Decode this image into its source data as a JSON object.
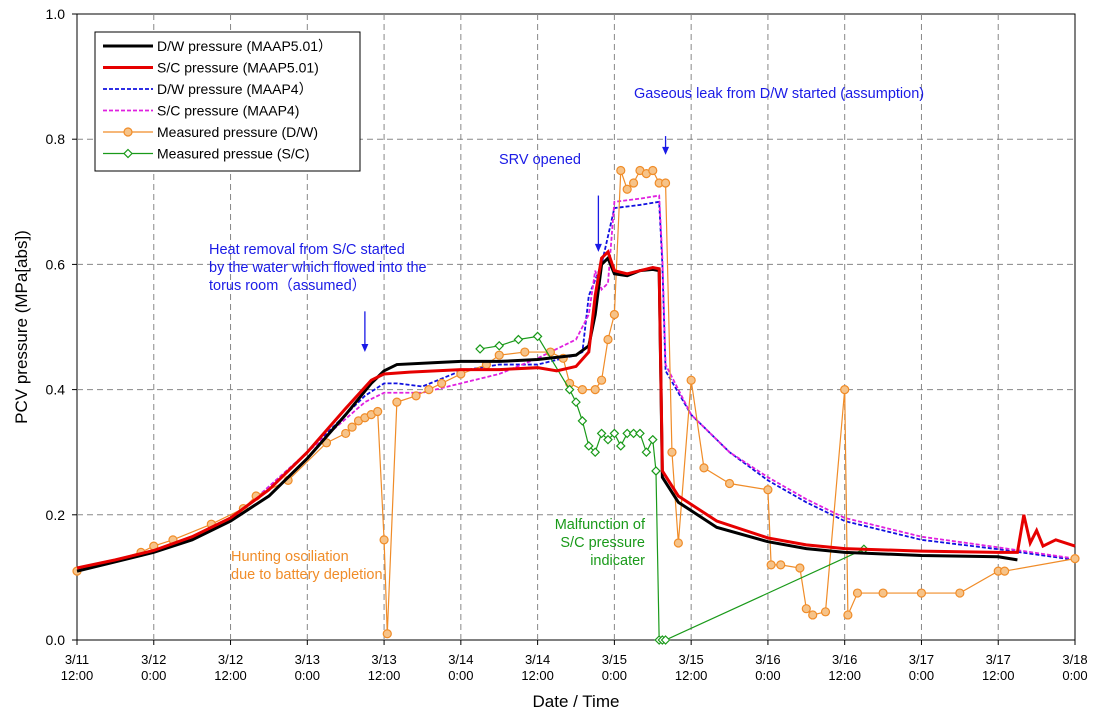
{
  "chart_data": {
    "type": "line",
    "xlabel": "Date / Time",
    "ylabel": "PCV pressure (MPa[abs])",
    "xlim": [
      "3/11 12:00",
      "3/18 0:00"
    ],
    "ylim": [
      0,
      1.0
    ],
    "grid": true,
    "legend_position": "top-left",
    "x_ticks": [
      {
        "date": "3/11",
        "time": "12:00"
      },
      {
        "date": "3/12",
        "time": "0:00"
      },
      {
        "date": "3/12",
        "time": "12:00"
      },
      {
        "date": "3/13",
        "time": "0:00"
      },
      {
        "date": "3/13",
        "time": "12:00"
      },
      {
        "date": "3/14",
        "time": "0:00"
      },
      {
        "date": "3/14",
        "time": "12:00"
      },
      {
        "date": "3/15",
        "time": "0:00"
      },
      {
        "date": "3/15",
        "time": "12:00"
      },
      {
        "date": "3/16",
        "time": "0:00"
      },
      {
        "date": "3/16",
        "time": "12:00"
      },
      {
        "date": "3/17",
        "time": "0:00"
      },
      {
        "date": "3/17",
        "time": "12:00"
      },
      {
        "date": "3/18",
        "time": "0:00"
      }
    ],
    "y_ticks": [
      "0.0",
      "0.2",
      "0.4",
      "0.6",
      "0.8",
      "1.0"
    ],
    "series": [
      {
        "name": "D/W pressure (MAAP5.01）",
        "color": "#000000",
        "style": "solid",
        "points": [
          [
            "3/11 12:00",
            0.11
          ],
          [
            "3/11 18:00",
            0.125
          ],
          [
            "3/12 0:00",
            0.14
          ],
          [
            "3/12 6:00",
            0.16
          ],
          [
            "3/12 12:00",
            0.19
          ],
          [
            "3/12 18:00",
            0.23
          ],
          [
            "3/13 0:00",
            0.29
          ],
          [
            "3/13 6:00",
            0.36
          ],
          [
            "3/13 10:00",
            0.41
          ],
          [
            "3/13 12:00",
            0.43
          ],
          [
            "3/13 14:00",
            0.44
          ],
          [
            "3/13 20:00",
            0.443
          ],
          [
            "3/14 0:00",
            0.445
          ],
          [
            "3/14 6:00",
            0.445
          ],
          [
            "3/14 12:00",
            0.448
          ],
          [
            "3/14 18:00",
            0.455
          ],
          [
            "3/14 20:00",
            0.47
          ],
          [
            "3/14 21:00",
            0.52
          ],
          [
            "3/14 22:00",
            0.6
          ],
          [
            "3/14 23:00",
            0.61
          ],
          [
            "3/15 0:00",
            0.585
          ],
          [
            "3/15 2:00",
            0.582
          ],
          [
            "3/15 4:00",
            0.59
          ],
          [
            "3/15 6:00",
            0.592
          ],
          [
            "3/15 7:00",
            0.59
          ],
          [
            "3/15 7:30",
            0.26
          ],
          [
            "3/15 10:00",
            0.22
          ],
          [
            "3/15 16:00",
            0.18
          ],
          [
            "3/16 0:00",
            0.157
          ],
          [
            "3/16 6:00",
            0.146
          ],
          [
            "3/16 12:00",
            0.14
          ],
          [
            "3/17 0:00",
            0.135
          ],
          [
            "3/17 12:00",
            0.133
          ],
          [
            "3/17 15:00",
            0.128
          ]
        ]
      },
      {
        "name": "S/C pressure (MAAP5.01)",
        "color": "#e60000",
        "style": "solid",
        "points": [
          [
            "3/11 12:00",
            0.115
          ],
          [
            "3/11 18:00",
            0.128
          ],
          [
            "3/12 0:00",
            0.143
          ],
          [
            "3/12 6:00",
            0.165
          ],
          [
            "3/12 12:00",
            0.195
          ],
          [
            "3/12 18:00",
            0.24
          ],
          [
            "3/13 0:00",
            0.3
          ],
          [
            "3/13 6:00",
            0.37
          ],
          [
            "3/13 10:00",
            0.415
          ],
          [
            "3/13 12:00",
            0.425
          ],
          [
            "3/13 16:00",
            0.428
          ],
          [
            "3/14 0:00",
            0.432
          ],
          [
            "3/14 6:00",
            0.432
          ],
          [
            "3/14 12:00",
            0.435
          ],
          [
            "3/14 15:00",
            0.43
          ],
          [
            "3/14 18:00",
            0.437
          ],
          [
            "3/14 20:00",
            0.46
          ],
          [
            "3/14 21:00",
            0.55
          ],
          [
            "3/14 22:00",
            0.61
          ],
          [
            "3/14 23:00",
            0.62
          ],
          [
            "3/15 0:00",
            0.59
          ],
          [
            "3/15 2:00",
            0.585
          ],
          [
            "3/15 4:00",
            0.59
          ],
          [
            "3/15 6:00",
            0.595
          ],
          [
            "3/15 7:00",
            0.593
          ],
          [
            "3/15 7:30",
            0.27
          ],
          [
            "3/15 10:00",
            0.23
          ],
          [
            "3/15 16:00",
            0.19
          ],
          [
            "3/16 0:00",
            0.163
          ],
          [
            "3/16 6:00",
            0.152
          ],
          [
            "3/16 12:00",
            0.146
          ],
          [
            "3/17 0:00",
            0.142
          ],
          [
            "3/17 12:00",
            0.14
          ],
          [
            "3/17 15:00",
            0.14
          ],
          [
            "3/17 16:00",
            0.2
          ],
          [
            "3/17 17:00",
            0.155
          ],
          [
            "3/17 18:00",
            0.175
          ],
          [
            "3/17 19:00",
            0.15
          ],
          [
            "3/17 21:00",
            0.16
          ],
          [
            "3/18 0:00",
            0.15
          ]
        ]
      },
      {
        "name": "D/W pressure (MAAP4）",
        "color": "#1010e0",
        "style": "dashed",
        "points": [
          [
            "3/11 12:00",
            0.11
          ],
          [
            "3/12 0:00",
            0.14
          ],
          [
            "3/12 12:00",
            0.19
          ],
          [
            "3/13 0:00",
            0.3
          ],
          [
            "3/13 9:00",
            0.39
          ],
          [
            "3/13 12:00",
            0.41
          ],
          [
            "3/13 14:00",
            0.41
          ],
          [
            "3/13 18:00",
            0.405
          ],
          [
            "3/14 0:00",
            0.43
          ],
          [
            "3/14 6:00",
            0.44
          ],
          [
            "3/14 12:00",
            0.44
          ],
          [
            "3/14 18:00",
            0.455
          ],
          [
            "3/14 19:00",
            0.46
          ],
          [
            "3/14 20:00",
            0.55
          ],
          [
            "3/14 22:00",
            0.6
          ],
          [
            "3/15 0:00",
            0.69
          ],
          [
            "3/15 4:00",
            0.695
          ],
          [
            "3/15 7:00",
            0.7
          ],
          [
            "3/15 7:30",
            0.6
          ],
          [
            "3/15 8:00",
            0.43
          ],
          [
            "3/15 12:00",
            0.36
          ],
          [
            "3/15 18:00",
            0.3
          ],
          [
            "3/16 0:00",
            0.255
          ],
          [
            "3/16 6:00",
            0.22
          ],
          [
            "3/16 12:00",
            0.19
          ],
          [
            "3/17 0:00",
            0.16
          ],
          [
            "3/17 12:00",
            0.145
          ],
          [
            "3/18 0:00",
            0.128
          ]
        ]
      },
      {
        "name": "S/C pressure (MAAP4)",
        "color": "#e020e0",
        "style": "dashed",
        "points": [
          [
            "3/11 12:00",
            0.11
          ],
          [
            "3/12 0:00",
            0.14
          ],
          [
            "3/12 12:00",
            0.19
          ],
          [
            "3/13 0:00",
            0.3
          ],
          [
            "3/13 9:00",
            0.38
          ],
          [
            "3/13 12:00",
            0.395
          ],
          [
            "3/13 18:00",
            0.395
          ],
          [
            "3/14 0:00",
            0.41
          ],
          [
            "3/14 6:00",
            0.425
          ],
          [
            "3/14 12:00",
            0.45
          ],
          [
            "3/14 18:00",
            0.48
          ],
          [
            "3/14 20:00",
            0.52
          ],
          [
            "3/14 21:00",
            0.59
          ],
          [
            "3/14 22:00",
            0.56
          ],
          [
            "3/14 23:00",
            0.57
          ],
          [
            "3/15 0:00",
            0.7
          ],
          [
            "3/15 4:00",
            0.705
          ],
          [
            "3/15 7:00",
            0.71
          ],
          [
            "3/15 7:30",
            0.61
          ],
          [
            "3/15 8:00",
            0.44
          ],
          [
            "3/15 12:00",
            0.36
          ],
          [
            "3/15 18:00",
            0.3
          ],
          [
            "3/16 0:00",
            0.26
          ],
          [
            "3/16 6:00",
            0.225
          ],
          [
            "3/16 12:00",
            0.195
          ],
          [
            "3/17 0:00",
            0.165
          ],
          [
            "3/17 12:00",
            0.148
          ],
          [
            "3/18 0:00",
            0.13
          ]
        ]
      },
      {
        "name": "Measured pressure (D/W)",
        "color": "#f08c28",
        "style": "marker-circle",
        "points": [
          [
            "3/11 12:00",
            0.11
          ],
          [
            "3/11 22:00",
            0.14
          ],
          [
            "3/12 0:00",
            0.15
          ],
          [
            "3/12 3:00",
            0.16
          ],
          [
            "3/12 9:00",
            0.185
          ],
          [
            "3/12 14:00",
            0.21
          ],
          [
            "3/12 16:00",
            0.23
          ],
          [
            "3/12 21:00",
            0.255
          ],
          [
            "3/13 3:00",
            0.315
          ],
          [
            "3/13 6:00",
            0.33
          ],
          [
            "3/13 7:00",
            0.34
          ],
          [
            "3/13 8:00",
            0.35
          ],
          [
            "3/13 9:00",
            0.355
          ],
          [
            "3/13 10:00",
            0.36
          ],
          [
            "3/13 11:00",
            0.365
          ],
          [
            "3/13 12:00",
            0.16
          ],
          [
            "3/13 12:30",
            0.01
          ],
          [
            "3/13 14:00",
            0.38
          ],
          [
            "3/13 17:00",
            0.39
          ],
          [
            "3/13 19:00",
            0.4
          ],
          [
            "3/13 21:00",
            0.41
          ],
          [
            "3/14 0:00",
            0.425
          ],
          [
            "3/14 4:00",
            0.44
          ],
          [
            "3/14 6:00",
            0.455
          ],
          [
            "3/14 10:00",
            0.46
          ],
          [
            "3/14 14:00",
            0.46
          ],
          [
            "3/14 16:00",
            0.45
          ],
          [
            "3/14 17:00",
            0.41
          ],
          [
            "3/14 19:00",
            0.4
          ],
          [
            "3/14 21:00",
            0.4
          ],
          [
            "3/14 22:00",
            0.415
          ],
          [
            "3/14 23:00",
            0.48
          ],
          [
            "3/15 0:00",
            0.52
          ],
          [
            "3/15 1:00",
            0.75
          ],
          [
            "3/15 2:00",
            0.72
          ],
          [
            "3/15 3:00",
            0.73
          ],
          [
            "3/15 4:00",
            0.75
          ],
          [
            "3/15 5:00",
            0.745
          ],
          [
            "3/15 6:00",
            0.75
          ],
          [
            "3/15 7:00",
            0.73
          ],
          [
            "3/15 8:00",
            0.73
          ],
          [
            "3/15 9:00",
            0.3
          ],
          [
            "3/15 10:00",
            0.155
          ],
          [
            "3/15 12:00",
            0.415
          ],
          [
            "3/15 14:00",
            0.275
          ],
          [
            "3/15 18:00",
            0.25
          ],
          [
            "3/16 0:00",
            0.24
          ],
          [
            "3/16 0:30",
            0.12
          ],
          [
            "3/16 2:00",
            0.12
          ],
          [
            "3/16 5:00",
            0.115
          ],
          [
            "3/16 6:00",
            0.05
          ],
          [
            "3/16 7:00",
            0.04
          ],
          [
            "3/16 9:00",
            0.045
          ],
          [
            "3/16 12:00",
            0.4
          ],
          [
            "3/16 12:30",
            0.04
          ],
          [
            "3/16 14:00",
            0.075
          ],
          [
            "3/16 18:00",
            0.075
          ],
          [
            "3/17 0:00",
            0.075
          ],
          [
            "3/17 6:00",
            0.075
          ],
          [
            "3/17 12:00",
            0.11
          ],
          [
            "3/17 13:00",
            0.11
          ],
          [
            "3/18 0:00",
            0.13
          ]
        ]
      },
      {
        "name": "Measured pressue (S/C)",
        "color": "#1a9a1a",
        "style": "marker-diamond",
        "points": [
          [
            "3/14 3:00",
            0.465
          ],
          [
            "3/14 6:00",
            0.47
          ],
          [
            "3/14 9:00",
            0.48
          ],
          [
            "3/14 12:00",
            0.485
          ],
          [
            "3/14 17:00",
            0.4
          ],
          [
            "3/14 18:00",
            0.38
          ],
          [
            "3/14 19:00",
            0.35
          ],
          [
            "3/14 20:00",
            0.31
          ],
          [
            "3/14 21:00",
            0.3
          ],
          [
            "3/14 22:00",
            0.33
          ],
          [
            "3/14 23:00",
            0.32
          ],
          [
            "3/15 0:00",
            0.33
          ],
          [
            "3/15 1:00",
            0.31
          ],
          [
            "3/15 2:00",
            0.33
          ],
          [
            "3/15 3:00",
            0.33
          ],
          [
            "3/15 4:00",
            0.33
          ],
          [
            "3/15 5:00",
            0.3
          ],
          [
            "3/15 6:00",
            0.32
          ],
          [
            "3/15 6:30",
            0.27
          ],
          [
            "3/15 7:00",
            0.0
          ],
          [
            "3/15 7:30",
            0.0
          ],
          [
            "3/15 8:00",
            0.0
          ],
          [
            "3/16 15:00",
            0.145
          ]
        ]
      }
    ],
    "annotations": [
      {
        "lines": [
          "Gaseous leak from D/W started (assumption)"
        ],
        "color": "#1a1ae6",
        "arrow_at": "3/15 8:00",
        "arrow_y": [
          0.805,
          0.775
        ]
      },
      {
        "lines": [
          "SRV opened"
        ],
        "color": "#1a1ae6",
        "arrow_at": "3/14 21:30",
        "arrow_y": [
          0.71,
          0.62
        ]
      },
      {
        "lines": [
          "Heat removal from S/C started",
          "by the water which flowed into the",
          "torus room（assumed）"
        ],
        "color": "#1a1ae6",
        "arrow_at": "3/13 9:00",
        "arrow_y": [
          0.525,
          0.46
        ]
      },
      {
        "lines": [
          "Malfunction of",
          "S/C pressure",
          "indicater"
        ],
        "color": "#1a9a1a"
      },
      {
        "lines": [
          "Hunting osciliation",
          "due to battery depletion"
        ],
        "color": "#f08c28"
      }
    ]
  }
}
